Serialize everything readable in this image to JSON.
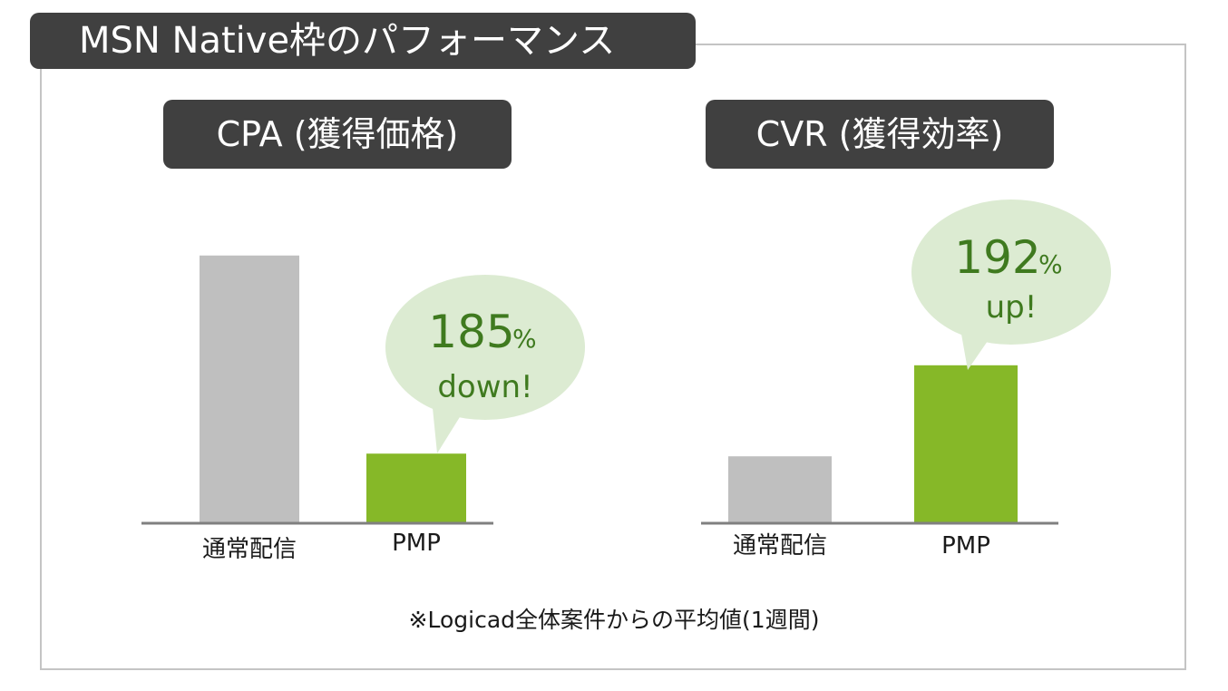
{
  "header": {
    "title": "MSN Native枠のパフォーマンス"
  },
  "colors": {
    "baseline_bar": "#bfbfbf",
    "pmp_bar": "#86b828",
    "bubble_fill": "#dcebd2",
    "bubble_text": "#3f7a1f",
    "title_bg": "#404040"
  },
  "chart_data": [
    {
      "type": "bar",
      "title": "CPA (獲得価格)",
      "categories": [
        "通常配信",
        "PMP"
      ],
      "values": [
        100,
        26
      ],
      "ylim": [
        0,
        105
      ],
      "callout": {
        "value": "185",
        "unit": "%",
        "text": "down!"
      }
    },
    {
      "type": "bar",
      "title": "CVR (獲得効率)",
      "categories": [
        "通常配信",
        "PMP"
      ],
      "values": [
        25,
        59
      ],
      "ylim": [
        0,
        105
      ],
      "callout": {
        "value": "192",
        "unit": "%",
        "text": "up!"
      }
    }
  ],
  "footnote": "※Logicad全体案件からの平均値(1週間)"
}
